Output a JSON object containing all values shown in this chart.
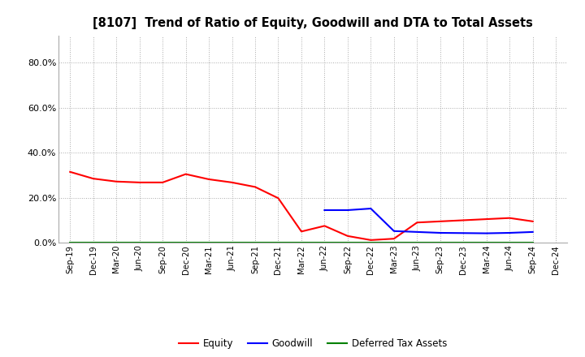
{
  "title": "[8107]  Trend of Ratio of Equity, Goodwill and DTA to Total Assets",
  "x_labels": [
    "Sep-19",
    "Dec-19",
    "Mar-20",
    "Jun-20",
    "Sep-20",
    "Dec-20",
    "Mar-21",
    "Jun-21",
    "Sep-21",
    "Dec-21",
    "Mar-22",
    "Jun-22",
    "Sep-22",
    "Dec-22",
    "Mar-23",
    "Jun-23",
    "Sep-23",
    "Dec-23",
    "Mar-24",
    "Jun-24",
    "Sep-24",
    "Dec-24"
  ],
  "equity": [
    0.315,
    0.285,
    0.272,
    0.268,
    0.268,
    0.305,
    0.282,
    0.268,
    0.248,
    0.198,
    0.05,
    0.075,
    0.03,
    0.012,
    0.018,
    0.09,
    0.095,
    0.1,
    0.105,
    0.11,
    0.095,
    null
  ],
  "goodwill": [
    null,
    null,
    null,
    null,
    null,
    null,
    null,
    null,
    null,
    null,
    null,
    0.145,
    0.145,
    0.152,
    0.052,
    0.048,
    0.044,
    0.043,
    0.042,
    0.044,
    0.048,
    null
  ],
  "dta": [
    0.002,
    0.002,
    0.002,
    0.002,
    0.002,
    0.002,
    0.002,
    0.002,
    0.002,
    0.002,
    0.002,
    0.002,
    0.002,
    0.002,
    0.002,
    0.002,
    0.002,
    0.002,
    0.002,
    0.002,
    0.002,
    null
  ],
  "equity_color": "#FF0000",
  "goodwill_color": "#0000FF",
  "dta_color": "#008000",
  "background_color": "#FFFFFF",
  "grid_color": "#AAAAAA",
  "ylim": [
    0.0,
    0.92
  ],
  "yticks": [
    0.0,
    0.2,
    0.4,
    0.6,
    0.8
  ],
  "ytick_labels": [
    "0.0%",
    "20.0%",
    "40.0%",
    "60.0%",
    "80.0%"
  ],
  "legend_labels": [
    "Equity",
    "Goodwill",
    "Deferred Tax Assets"
  ]
}
